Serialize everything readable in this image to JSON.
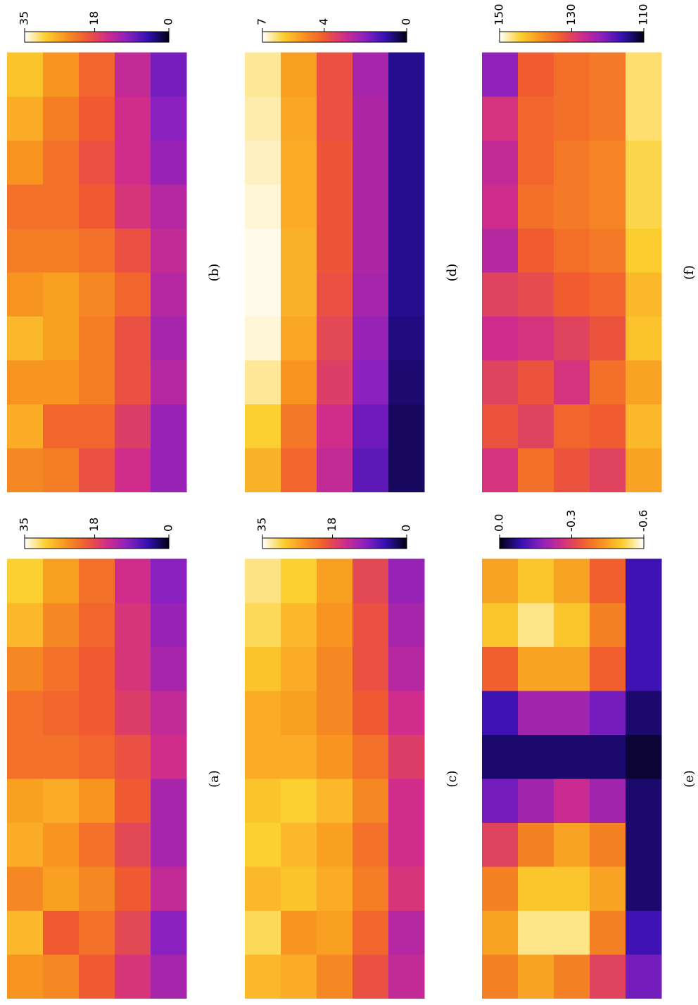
{
  "colormap": [
    "#000010",
    "#3010b0",
    "#8a20c0",
    "#d02c8c",
    "#f05a30",
    "#f89420",
    "#fcd030",
    "#ffffff"
  ],
  "chart_data": [
    {
      "type": "heatmap",
      "caption": "(a)",
      "clim": [
        0,
        35
      ],
      "cticks": [
        0,
        18,
        35
      ],
      "values": [
        [
          25,
          28,
          24,
          27,
          26,
          22,
          22,
          24,
          28,
          30
        ],
        [
          24,
          20,
          26,
          25,
          27,
          22,
          21,
          22,
          24,
          26
        ],
        [
          20,
          22,
          24,
          22,
          25,
          21,
          20,
          20,
          21,
          22
        ],
        [
          16,
          18,
          20,
          18,
          20,
          19,
          17,
          16,
          16,
          15
        ],
        [
          12,
          10,
          14,
          12,
          12,
          15,
          14,
          12,
          11,
          10
        ]
      ]
    },
    {
      "type": "heatmap",
      "caption": "(b)",
      "clim": [
        0,
        35
      ],
      "cticks": [
        0,
        18,
        35
      ],
      "values": [
        [
          24,
          27,
          25,
          28,
          25,
          23,
          22,
          25,
          27,
          29
        ],
        [
          23,
          21,
          25,
          26,
          26,
          23,
          22,
          22,
          23,
          25
        ],
        [
          19,
          21,
          23,
          23,
          24,
          22,
          20,
          19,
          20,
          21
        ],
        [
          15,
          17,
          19,
          19,
          21,
          19,
          16,
          15,
          15,
          14
        ],
        [
          11,
          11,
          13,
          12,
          13,
          14,
          13,
          11,
          10,
          9
        ]
      ]
    },
    {
      "type": "heatmap",
      "caption": "(c)",
      "clim": [
        0,
        35
      ],
      "cticks": [
        0,
        18,
        35
      ],
      "values": [
        [
          28,
          31,
          28,
          30,
          29,
          27,
          27,
          29,
          31,
          32
        ],
        [
          27,
          25,
          29,
          28,
          30,
          27,
          26,
          27,
          28,
          30
        ],
        [
          24,
          26,
          27,
          26,
          28,
          25,
          24,
          24,
          25,
          26
        ],
        [
          19,
          21,
          23,
          22,
          24,
          22,
          20,
          19,
          19,
          18
        ],
        [
          14,
          13,
          16,
          15,
          15,
          17,
          15,
          13,
          12,
          11
        ]
      ]
    },
    {
      "type": "heatmap",
      "caption": "(d)",
      "clim": [
        0,
        7
      ],
      "cticks": [
        0,
        4,
        7
      ],
      "values": [
        [
          5.5,
          6,
          6.5,
          6.8,
          6.9,
          6.9,
          6.8,
          6.7,
          6.6,
          6.5
        ],
        [
          4.2,
          4.5,
          5,
          5.3,
          5.5,
          5.5,
          5.4,
          5.4,
          5.3,
          5.2
        ],
        [
          2.8,
          3,
          3.4,
          3.6,
          3.8,
          3.9,
          3.9,
          3.9,
          3.8,
          3.8
        ],
        [
          1.5,
          1.7,
          2,
          2.2,
          2.4,
          2.5,
          2.5,
          2.5,
          2.5,
          2.4
        ],
        [
          0.5,
          0.5,
          0.6,
          0.7,
          0.8,
          0.8,
          0.8,
          0.8,
          0.8,
          0.8
        ]
      ]
    },
    {
      "type": "heatmap",
      "caption": "(e)",
      "clim": [
        0,
        -0.6
      ],
      "cticks": [
        -0.6,
        -0.3,
        {
          "value": 0,
          "label": "0.0"
        }
      ],
      "values": [
        [
          -0.4,
          -0.45,
          -0.4,
          -0.3,
          -0.15,
          -0.05,
          -0.1,
          -0.35,
          -0.5,
          -0.45
        ],
        [
          -0.45,
          -0.55,
          -0.5,
          -0.4,
          -0.2,
          -0.05,
          -0.2,
          -0.45,
          -0.55,
          -0.5
        ],
        [
          -0.4,
          -0.55,
          -0.5,
          -0.45,
          -0.25,
          -0.05,
          -0.2,
          -0.45,
          -0.5,
          -0.45
        ],
        [
          -0.3,
          -0.4,
          -0.45,
          -0.4,
          -0.2,
          -0.05,
          -0.15,
          -0.35,
          -0.4,
          -0.35
        ],
        [
          -0.15,
          -0.1,
          -0.05,
          -0.05,
          -0.05,
          -0.02,
          -0.05,
          -0.1,
          -0.1,
          -0.1
        ]
      ]
    },
    {
      "type": "heatmap",
      "caption": "(f)",
      "clim": [
        110,
        150
      ],
      "cticks": [
        110,
        130,
        150
      ],
      "values": [
        [
          128,
          132,
          130,
          127,
          130,
          125,
          127,
          126,
          128,
          122
        ],
        [
          135,
          130,
          132,
          128,
          131,
          133,
          135,
          134,
          134,
          133
        ],
        [
          132,
          134,
          128,
          130,
          133,
          135,
          136,
          136,
          135,
          135
        ],
        [
          130,
          133,
          135,
          132,
          134,
          136,
          137,
          137,
          136,
          136
        ],
        [
          140,
          142,
          140,
          143,
          142,
          144,
          145,
          145,
          146,
          146
        ]
      ]
    }
  ]
}
